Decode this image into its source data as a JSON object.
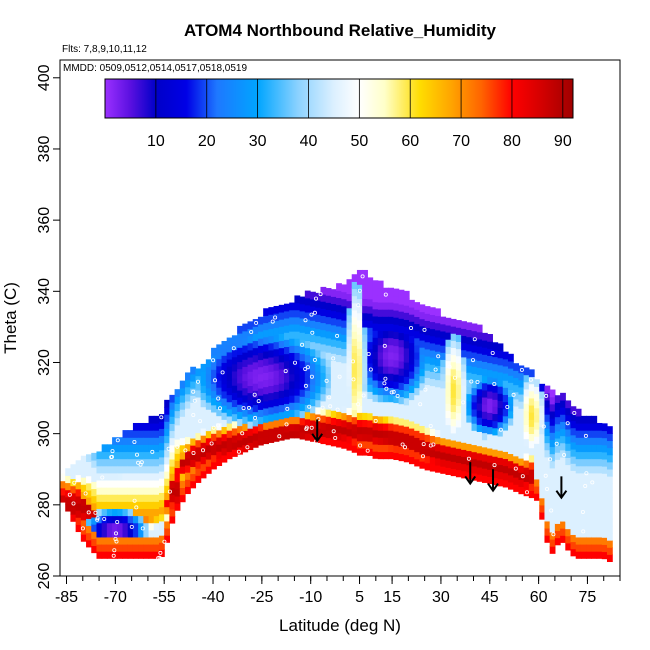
{
  "chart_data": {
    "type": "heatmap",
    "title": "ATOM4 Northbound Relative_Humidity",
    "flights_note": "Flts: 7,8,9,10,11,12",
    "dates_note": "MMDD: 0509,0512,0514,0517,0518,0519",
    "xlabel": "Latitude (deg N)",
    "ylabel": "Theta (C)",
    "xlim": [
      -87,
      85
    ],
    "ylim": [
      260,
      405
    ],
    "x_ticks": [
      -85,
      -70,
      -55,
      -40,
      -25,
      -10,
      5,
      15,
      30,
      45,
      60,
      75
    ],
    "x_minor_step": 5,
    "y_ticks": [
      260,
      280,
      300,
      320,
      340,
      360,
      380,
      400
    ],
    "colorbar": {
      "min": 0,
      "max": 92,
      "tick_values": [
        10,
        20,
        30,
        40,
        50,
        60,
        70,
        80,
        90
      ],
      "color_stops": [
        {
          "value": 0,
          "color": "#9b30ff"
        },
        {
          "value": 5,
          "color": "#5a10e0"
        },
        {
          "value": 10,
          "color": "#0000c8"
        },
        {
          "value": 16,
          "color": "#0000e6"
        },
        {
          "value": 22,
          "color": "#1e78ff"
        },
        {
          "value": 30,
          "color": "#00a5ff"
        },
        {
          "value": 38,
          "color": "#8cd2ff"
        },
        {
          "value": 45,
          "color": "#dcf0ff"
        },
        {
          "value": 50,
          "color": "#ffffff"
        },
        {
          "value": 55,
          "color": "#ffffc8"
        },
        {
          "value": 62,
          "color": "#ffdc00"
        },
        {
          "value": 68,
          "color": "#ffa500"
        },
        {
          "value": 74,
          "color": "#ff6400"
        },
        {
          "value": 80,
          "color": "#ff0000"
        },
        {
          "value": 86,
          "color": "#d20000"
        },
        {
          "value": 92,
          "color": "#a00000"
        }
      ]
    },
    "envelope": {
      "latitudes": [
        -87,
        -85,
        -80,
        -75,
        -70,
        -65,
        -60,
        -56,
        -54,
        -52,
        -48,
        -45,
        -40,
        -35,
        -30,
        -25,
        -20,
        -15,
        -10,
        -5,
        0,
        3,
        5,
        8,
        10,
        15,
        20,
        25,
        30,
        35,
        40,
        45,
        50,
        55,
        58,
        60,
        62,
        64,
        65,
        67,
        70,
        72,
        75,
        80,
        82
      ],
      "theta_top": [
        287,
        288,
        292,
        295,
        298,
        301,
        303,
        305,
        308,
        311,
        316,
        318,
        322,
        326,
        330,
        333,
        335,
        337,
        339,
        340,
        341,
        343,
        345,
        344,
        342,
        340,
        338,
        335,
        333,
        331,
        330,
        327,
        322,
        318,
        316,
        314,
        313,
        312,
        311,
        310,
        308,
        306,
        304,
        302,
        300
      ],
      "theta_bottom": [
        282,
        279,
        270,
        265,
        265,
        265,
        265,
        265,
        270,
        277,
        283,
        286,
        290,
        293,
        295,
        297,
        298,
        299,
        298,
        297,
        296,
        295,
        294,
        294,
        293,
        293,
        292,
        290,
        289,
        288,
        287,
        286,
        285,
        283,
        282,
        281,
        271,
        266,
        268,
        270,
        266,
        265,
        265,
        265,
        264
      ]
    },
    "high_humidity_bands": [
      {
        "latitudes": [
          -85,
          -75,
          -65,
          -58,
          -54
        ],
        "theta_center": [
          280,
          279,
          280,
          282,
          284
        ],
        "half_width": 7
      },
      {
        "latitudes": [
          -50,
          -40,
          -30,
          -20,
          -10,
          0,
          10,
          20,
          30,
          40,
          50,
          55
        ],
        "theta_center": [
          292,
          296,
          298,
          300,
          301,
          301,
          300,
          298,
          294,
          292,
          290,
          288
        ],
        "half_width": 5
      }
    ],
    "dry_cores": [
      {
        "latitude": -25,
        "theta": 316,
        "lat_radius": 22,
        "theta_radius": 14
      },
      {
        "latitude": 15,
        "theta": 322,
        "lat_radius": 12,
        "theta_radius": 14
      },
      {
        "latitude": 45,
        "theta": 308,
        "lat_radius": 8,
        "theta_radius": 9
      },
      {
        "latitude": -70,
        "theta": 273,
        "lat_radius": 10,
        "theta_radius": 6
      }
    ],
    "moist_ridges": [
      {
        "latitude": 4,
        "theta": 318,
        "lat_radius": 3,
        "theta_radius": 25
      },
      {
        "latitude": 34,
        "theta": 312,
        "lat_radius": 4,
        "theta_radius": 16
      },
      {
        "latitude": 58,
        "theta": 305,
        "lat_radius": 4,
        "theta_radius": 12
      }
    ],
    "arrows": [
      {
        "latitude": -8,
        "theta_from": 304,
        "theta_to": 298
      },
      {
        "latitude": 39,
        "theta_from": 292,
        "theta_to": 286
      },
      {
        "latitude": 46,
        "theta_from": 290,
        "theta_to": 284
      },
      {
        "latitude": 67,
        "theta_from": 288,
        "theta_to": 282
      }
    ]
  }
}
